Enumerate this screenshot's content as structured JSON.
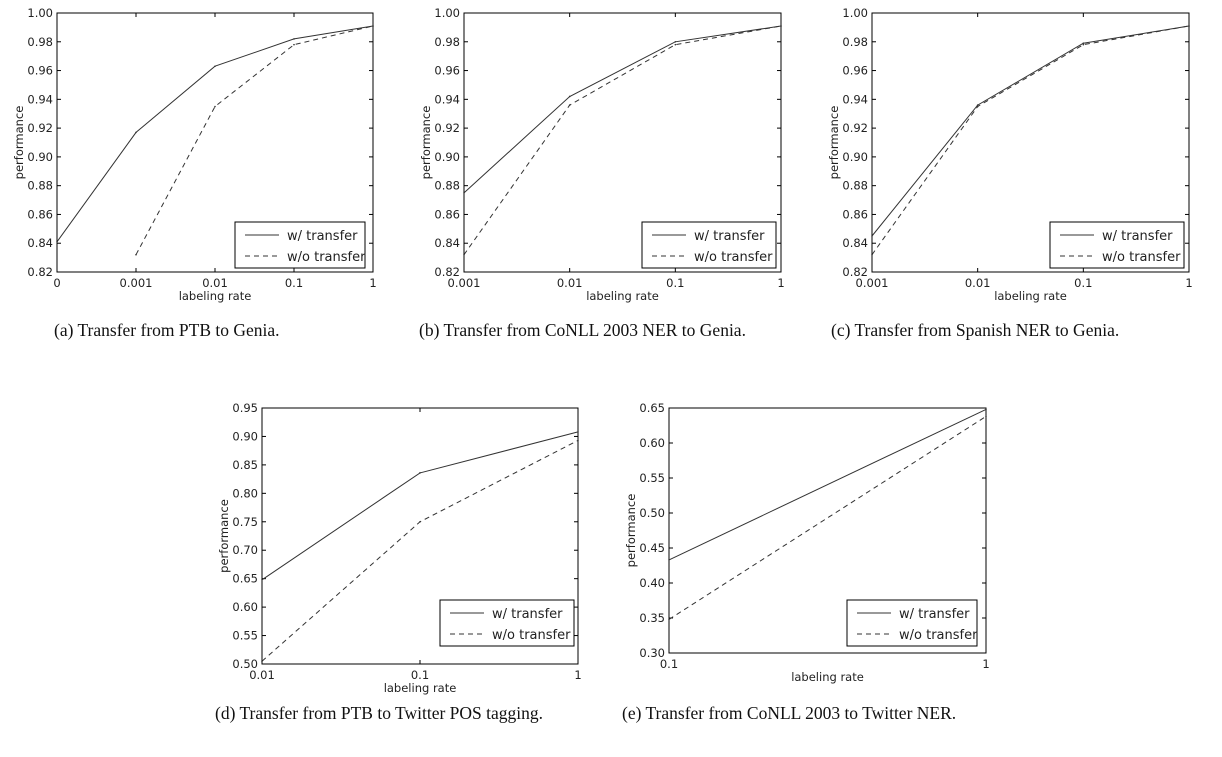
{
  "chart_data": [
    {
      "type": "line",
      "caption": "(a) Transfer from PTB to Genia.",
      "xlabel": "labeling rate",
      "ylabel": "performance",
      "xticks": [
        "0",
        "0.001",
        "0.01",
        "0.1",
        "1"
      ],
      "yticks": [
        "0.82",
        "0.84",
        "0.86",
        "0.88",
        "0.90",
        "0.92",
        "0.94",
        "0.96",
        "0.98",
        "1.00"
      ],
      "ylim": [
        0.82,
        1.0
      ],
      "series": [
        {
          "name": "w/ transfer",
          "style": "solid",
          "x": [
            "0",
            "0.001",
            "0.01",
            "0.1",
            "1"
          ],
          "values": [
            0.841,
            0.917,
            0.963,
            0.982,
            0.991
          ]
        },
        {
          "name": "w/o transfer",
          "style": "dashed",
          "x": [
            "0.001",
            "0.01",
            "0.1",
            "1"
          ],
          "values": [
            0.832,
            0.935,
            0.978,
            0.991
          ]
        }
      ],
      "legend": "bottom-right"
    },
    {
      "type": "line",
      "caption": "(b) Transfer from CoNLL 2003 NER to Genia.",
      "xlabel": "labeling rate",
      "ylabel": "performance",
      "xticks": [
        "0.001",
        "0.01",
        "0.1",
        "1"
      ],
      "yticks": [
        "0.82",
        "0.84",
        "0.86",
        "0.88",
        "0.90",
        "0.92",
        "0.94",
        "0.96",
        "0.98",
        "1.00"
      ],
      "ylim": [
        0.82,
        1.0
      ],
      "series": [
        {
          "name": "w/ transfer",
          "style": "solid",
          "x": [
            "0.001",
            "0.01",
            "0.1",
            "1"
          ],
          "values": [
            0.875,
            0.942,
            0.98,
            0.991
          ]
        },
        {
          "name": "w/o transfer",
          "style": "dashed",
          "x": [
            "0.001",
            "0.01",
            "0.1",
            "1"
          ],
          "values": [
            0.832,
            0.936,
            0.978,
            0.991
          ]
        }
      ],
      "legend": "bottom-right"
    },
    {
      "type": "line",
      "caption": "(c) Transfer from Spanish NER to Genia.",
      "xlabel": "labeling rate",
      "ylabel": "performance",
      "xticks": [
        "0.001",
        "0.01",
        "0.1",
        "1"
      ],
      "yticks": [
        "0.82",
        "0.84",
        "0.86",
        "0.88",
        "0.90",
        "0.92",
        "0.94",
        "0.96",
        "0.98",
        "1.00"
      ],
      "ylim": [
        0.82,
        1.0
      ],
      "series": [
        {
          "name": "w/ transfer",
          "style": "solid",
          "x": [
            "0.001",
            "0.01",
            "0.1",
            "1"
          ],
          "values": [
            0.845,
            0.936,
            0.979,
            0.991
          ]
        },
        {
          "name": "w/o transfer",
          "style": "dashed",
          "x": [
            "0.001",
            "0.01",
            "0.1",
            "1"
          ],
          "values": [
            0.832,
            0.935,
            0.978,
            0.991
          ]
        }
      ],
      "legend": "bottom-right"
    },
    {
      "type": "line",
      "caption": "(d) Transfer from PTB to Twitter POS tagging.",
      "xlabel": "labeling rate",
      "ylabel": "performance",
      "xticks": [
        "0.01",
        "0.1",
        "1"
      ],
      "yticks": [
        "0.50",
        "0.55",
        "0.60",
        "0.65",
        "0.70",
        "0.75",
        "0.80",
        "0.85",
        "0.90",
        "0.95"
      ],
      "ylim": [
        0.5,
        0.95
      ],
      "series": [
        {
          "name": "w/ transfer",
          "style": "solid",
          "x": [
            "0.01",
            "0.1",
            "1"
          ],
          "values": [
            0.648,
            0.836,
            0.908
          ]
        },
        {
          "name": "w/o transfer",
          "style": "dashed",
          "x": [
            "0.01",
            "0.1",
            "1"
          ],
          "values": [
            0.505,
            0.75,
            0.893
          ]
        }
      ],
      "legend": "bottom-right"
    },
    {
      "type": "line",
      "caption": "(e) Transfer from CoNLL 2003 to Twitter NER.",
      "xlabel": "labeling rate",
      "ylabel": "performance",
      "xticks": [
        "0.1",
        "1"
      ],
      "yticks": [
        "0.30",
        "0.35",
        "0.40",
        "0.45",
        "0.50",
        "0.55",
        "0.60",
        "0.65"
      ],
      "ylim": [
        0.3,
        0.65
      ],
      "series": [
        {
          "name": "w/ transfer",
          "style": "solid",
          "x": [
            "0.1",
            "1"
          ],
          "values": [
            0.433,
            0.648
          ]
        },
        {
          "name": "w/o transfer",
          "style": "dashed",
          "x": [
            "0.1",
            "1"
          ],
          "values": [
            0.348,
            0.638
          ]
        }
      ],
      "legend": "bottom-right"
    }
  ]
}
